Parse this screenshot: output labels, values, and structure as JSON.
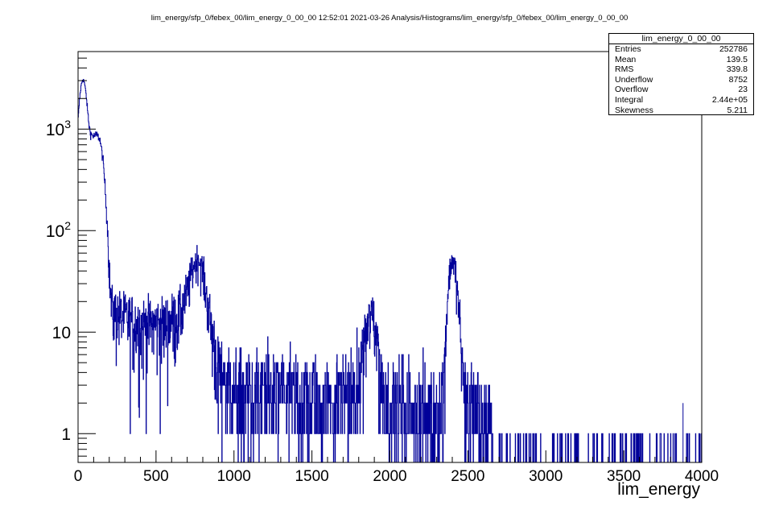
{
  "title": "lim_energy/sfp_0/febex_00/lim_energy_0_00_00  12:52:01  2021-03-26  Analysis/Histograms/lim_energy/sfp_0/febex_00/lim_energy_0_00_00",
  "stats": {
    "name": "lim_energy_0_00_00",
    "rows": [
      {
        "label": "Entries",
        "value": "252786"
      },
      {
        "label": "Mean",
        "value": "139.5"
      },
      {
        "label": "RMS",
        "value": "339.8"
      },
      {
        "label": "Underflow",
        "value": "8752"
      },
      {
        "label": "Overflow",
        "value": "23"
      },
      {
        "label": "Integral",
        "value": "2.44e+05"
      },
      {
        "label": "Skewness",
        "value": "5.211"
      }
    ]
  },
  "chart_data": {
    "type": "histogram",
    "title": "lim_energy_0_00_00",
    "xlabel": "lim_energy",
    "ylabel": "",
    "xlim": [
      0,
      4000
    ],
    "ylim": [
      0.52,
      5800
    ],
    "yscale": "log",
    "line_color": "#000099",
    "x_ticks": [
      "0",
      "500",
      "1000",
      "1500",
      "2000",
      "2500",
      "3000",
      "3500",
      "4000"
    ],
    "y_ticks": [
      {
        "value": 1,
        "label": "1"
      },
      {
        "value": 10,
        "label": "10"
      },
      {
        "value": 100,
        "label": "10^2"
      },
      {
        "value": 1000,
        "label": "10^3"
      }
    ],
    "profile": [
      [
        0,
        1200
      ],
      [
        10,
        2000
      ],
      [
        20,
        2700
      ],
      [
        30,
        3100
      ],
      [
        40,
        2900
      ],
      [
        50,
        2300
      ],
      [
        60,
        1600
      ],
      [
        70,
        1100
      ],
      [
        80,
        900
      ],
      [
        100,
        850
      ],
      [
        120,
        880
      ],
      [
        140,
        800
      ],
      [
        160,
        500
      ],
      [
        175,
        250
      ],
      [
        190,
        100
      ],
      [
        200,
        40
      ],
      [
        210,
        22
      ],
      [
        220,
        16
      ],
      [
        300,
        14
      ],
      [
        400,
        12
      ],
      [
        550,
        12
      ],
      [
        650,
        15
      ],
      [
        700,
        25
      ],
      [
        740,
        45
      ],
      [
        770,
        55
      ],
      [
        800,
        40
      ],
      [
        830,
        20
      ],
      [
        860,
        10
      ],
      [
        900,
        5
      ],
      [
        1000,
        3.5
      ],
      [
        1400,
        3
      ],
      [
        1750,
        3
      ],
      [
        1800,
        4
      ],
      [
        1830,
        7
      ],
      [
        1860,
        12
      ],
      [
        1890,
        15
      ],
      [
        1910,
        11
      ],
      [
        1940,
        5
      ],
      [
        1980,
        2.5
      ],
      [
        2300,
        2
      ],
      [
        2340,
        3
      ],
      [
        2360,
        12
      ],
      [
        2380,
        35
      ],
      [
        2400,
        55
      ],
      [
        2420,
        40
      ],
      [
        2440,
        18
      ],
      [
        2460,
        6
      ],
      [
        2500,
        2.5
      ],
      [
        2600,
        1.5
      ],
      [
        2800,
        1
      ],
      [
        4000,
        1
      ]
    ],
    "isolated_spikes": [
      {
        "x": 3880,
        "y": 2
      },
      {
        "x": 3990,
        "y": 1
      }
    ]
  }
}
